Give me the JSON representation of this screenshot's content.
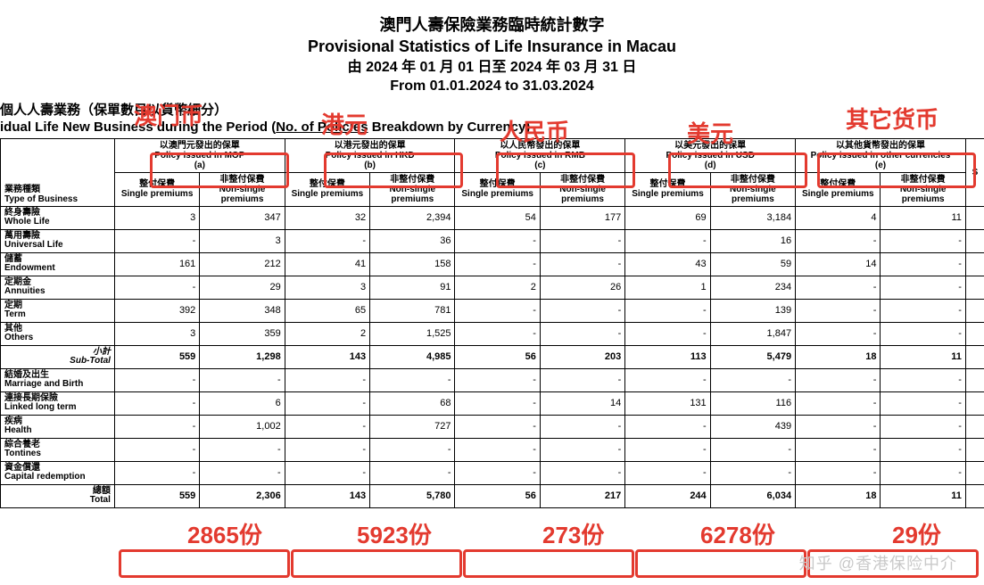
{
  "colors": {
    "annotation": "#e33a2f",
    "text": "#000000",
    "bg": "#ffffff",
    "watermark": "#c9c9c9",
    "border": "#000000"
  },
  "title": {
    "cn": "澳門人壽保險業務臨時統計數字",
    "en": "Provisional Statistics of Life Insurance in Macau",
    "date_cn": "由 2024 年 01 月 01 日至 2024 年 03 月 31 日",
    "date_en": "From 01.01.2024 to 31.03.2024"
  },
  "section": {
    "cn": "個人人壽業務（保單數目以貨幣細分）",
    "en_pre": "idual Life New Business during the Period (",
    "en_u": "No. of Policies",
    "en_post": " Breakdown by Currency)"
  },
  "annotations": {
    "c1": "澳门币",
    "c2": "港元",
    "c3": "人民币",
    "c4": "美元",
    "c5": "其它货币",
    "t1": "2865份",
    "t2": "5923份",
    "t3": "273份",
    "t4": "6278份",
    "t5": "29份"
  },
  "watermark": "知乎  @香港保险中介",
  "table": {
    "type_header_cn": "業務種類",
    "type_header_en": "Type of Business",
    "cur_headers": [
      {
        "cn": "以澳門元發出的保單",
        "en": "Policy issued in MOP",
        "tag": "(a)"
      },
      {
        "cn": "以港元發出的保單",
        "en": "Policy issued in HKD",
        "tag": "(b)"
      },
      {
        "cn": "以人民幣發出的保單",
        "en": "Policy issued in RMB",
        "tag": "(c)"
      },
      {
        "cn": "以美元發出的保單",
        "en": "Policy issued in USD",
        "tag": "(d)"
      },
      {
        "cn": "以其他貨幣發出的保單",
        "en": "Policy issued in other currencies",
        "tag": "(e)"
      }
    ],
    "sub_single_cn": "整付保費",
    "sub_single_en": "Single premiums",
    "sub_non_cn": "非整付保費",
    "sub_non_en": "Non-single premiums",
    "last_col": "S",
    "rows": [
      {
        "cn": "終身壽險",
        "en": "Whole Life",
        "v": [
          "3",
          "347",
          "32",
          "2,394",
          "54",
          "177",
          "69",
          "3,184",
          "4",
          "11"
        ]
      },
      {
        "cn": "萬用壽險",
        "en": "Universal Life",
        "v": [
          "-",
          "3",
          "-",
          "36",
          "-",
          "-",
          "-",
          "16",
          "-",
          "-"
        ]
      },
      {
        "cn": "儲蓄",
        "en": "Endowment",
        "v": [
          "161",
          "212",
          "41",
          "158",
          "-",
          "-",
          "43",
          "59",
          "14",
          "-"
        ]
      },
      {
        "cn": "定期金",
        "en": "Annuities",
        "v": [
          "-",
          "29",
          "3",
          "91",
          "2",
          "26",
          "1",
          "234",
          "-",
          "-"
        ]
      },
      {
        "cn": "定期",
        "en": "Term",
        "v": [
          "392",
          "348",
          "65",
          "781",
          "-",
          "-",
          "-",
          "139",
          "-",
          "-"
        ]
      },
      {
        "cn": "其他",
        "en": "Others",
        "v": [
          "3",
          "359",
          "2",
          "1,525",
          "-",
          "-",
          "-",
          "1,847",
          "-",
          "-"
        ]
      }
    ],
    "subtotal": {
      "cn": "小計",
      "en": "Sub-Total",
      "v": [
        "559",
        "1,298",
        "143",
        "4,985",
        "56",
        "203",
        "113",
        "5,479",
        "18",
        "11"
      ]
    },
    "rows2": [
      {
        "cn": "結婚及出生",
        "en": "Marriage and Birth",
        "v": [
          "-",
          "-",
          "-",
          "-",
          "-",
          "-",
          "-",
          "-",
          "-",
          "-"
        ]
      },
      {
        "cn": "連接長期保險",
        "en": "Linked long term",
        "v": [
          "-",
          "6",
          "-",
          "68",
          "-",
          "14",
          "131",
          "116",
          "-",
          "-"
        ]
      },
      {
        "cn": "疾病",
        "en": "Health",
        "v": [
          "-",
          "1,002",
          "-",
          "727",
          "-",
          "-",
          "-",
          "439",
          "-",
          "-"
        ]
      },
      {
        "cn": "綜合養老",
        "en": "Tontines",
        "v": [
          "-",
          "-",
          "-",
          "-",
          "-",
          "-",
          "-",
          "-",
          "-",
          "-"
        ]
      },
      {
        "cn": "資金償還",
        "en": "Capital redemption",
        "v": [
          "-",
          "-",
          "-",
          "-",
          "-",
          "-",
          "-",
          "-",
          "-",
          "-"
        ]
      }
    ],
    "total": {
      "cn": "總額",
      "en": "Total",
      "v": [
        "559",
        "2,306",
        "143",
        "5,780",
        "56",
        "217",
        "244",
        "6,034",
        "18",
        "11"
      ]
    }
  }
}
